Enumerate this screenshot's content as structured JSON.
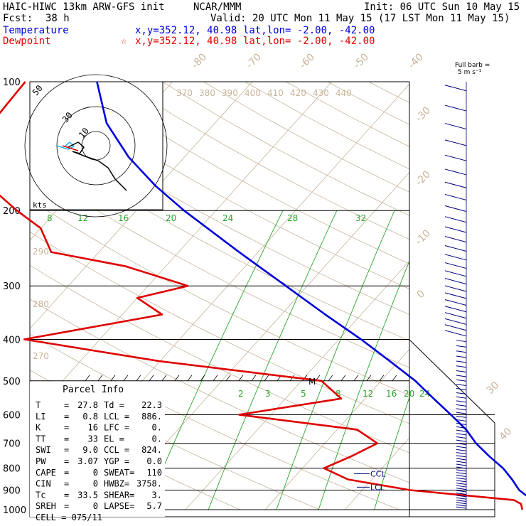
{
  "header": {
    "model": "HAIC-HIWC 13km ARW-GFS init",
    "org": "NCAR/MMM",
    "init": "Init: 06 UTC Sun 10 May 15",
    "fcst_label": "Fcst:",
    "fcst_value": "38 h",
    "valid": "Valid: 20 UTC Mon 11 May 15 (17 LST Mon 11 May 15)",
    "temp_label": "Temperature",
    "temp_xy": "x,y=352.12, 40.98",
    "temp_latlon": "lat,lon= -2.00, -42.00",
    "dew_label": "Dewpoint",
    "dew_xy": "x,y=352.12, 40.98",
    "dew_latlon": "lat,lon= -2.00, -42.00",
    "star_glyph": "☆"
  },
  "colors": {
    "temperature": "#0000dd",
    "dewpoint": "#e00000",
    "isotherm": "#c8b49a",
    "mixing_ratio": "#2aa52a",
    "isobar": "#000000",
    "wind": "#000080"
  },
  "barb_legend": {
    "line1": "Full barb =",
    "line2": "5 m s⁻¹"
  },
  "parcel": {
    "title": "Parcel Info",
    "rows": [
      {
        "k1": "T",
        "v1": "27.8",
        "k2": "Td =",
        "v2": "22.3"
      },
      {
        "k1": "LI",
        "v1": "0.8",
        "k2": "LCL =",
        "v2": "886."
      },
      {
        "k1": "K",
        "v1": "16",
        "k2": "LFC =",
        "v2": "0."
      },
      {
        "k1": "TT",
        "v1": "33",
        "k2": "EL =",
        "v2": "0."
      },
      {
        "k1": "SWI",
        "v1": "9.0",
        "k2": "CCL =",
        "v2": "824."
      },
      {
        "k1": "PW",
        "v1": "3.07",
        "k2": "YGP =",
        "v2": "0.0"
      },
      {
        "k1": "CAPE",
        "v1": "0",
        "k2": "SWEAT=",
        "v2": "110"
      },
      {
        "k1": "CIN",
        "v1": "0",
        "k2": "HWBZ=",
        "v2": "3758."
      },
      {
        "k1": "Tc",
        "v1": "33.5",
        "k2": "SHEAR=",
        "v2": "3."
      },
      {
        "k1": "SREH",
        "v1": "0",
        "k2": "LAPSE=",
        "v2": "5.7"
      }
    ],
    "cell": "CELL = 075/11"
  },
  "hodograph": {
    "ring_labels": [
      "50",
      "30",
      "10"
    ],
    "units": "kts"
  },
  "chart_data": {
    "type": "line",
    "subtype": "skew-T log-P sounding",
    "pressure_levels_hPa": [
      100,
      200,
      300,
      400,
      500,
      600,
      700,
      800,
      900,
      1000
    ],
    "pressure_tick_labels": [
      "100",
      "200",
      "300",
      "400",
      "500",
      "600",
      "700",
      "800",
      "900",
      "1000"
    ],
    "isotherm_labels": [
      "-80",
      "-70",
      "-60",
      "-50",
      "-40",
      "-30",
      "-20",
      "-10",
      "0",
      "30",
      "40"
    ],
    "theta_labels_top": [
      "370",
      "380",
      "390",
      "400",
      "410",
      "420",
      "430",
      "440"
    ],
    "theta_labels_left": [
      "290",
      "280",
      "270"
    ],
    "mixing_ratio_labels_upper": [
      "8",
      "12",
      "16",
      "20",
      "24",
      "28",
      "32"
    ],
    "mixing_ratio_labels_lower": [
      "2",
      "3",
      "5",
      "8",
      "12",
      "16",
      "20",
      "24"
    ],
    "ccl_label": "CCL",
    "lcl_label": "LCL",
    "marker_label": "M",
    "series": [
      {
        "name": "Temperature",
        "color": "#0000dd",
        "points_p_T": [
          [
            1000,
            27.8
          ],
          [
            970,
            24.5
          ],
          [
            950,
            22.8
          ],
          [
            925,
            21.1
          ],
          [
            900,
            19.7
          ],
          [
            850,
            17.6
          ],
          [
            800,
            15.2
          ],
          [
            750,
            12.1
          ],
          [
            700,
            9.0
          ],
          [
            650,
            6.2
          ],
          [
            600,
            2.6
          ],
          [
            550,
            -1.4
          ],
          [
            500,
            -5.7
          ],
          [
            450,
            -11.1
          ],
          [
            400,
            -17.2
          ],
          [
            350,
            -24.5
          ],
          [
            300,
            -32.7
          ],
          [
            250,
            -42.4
          ],
          [
            200,
            -54.0
          ],
          [
            175,
            -60.4
          ],
          [
            150,
            -67.0
          ],
          [
            125,
            -73.6
          ],
          [
            100,
            -79.5
          ]
        ]
      },
      {
        "name": "Dewpoint",
        "color": "#e00000",
        "points_p_T": [
          [
            1000,
            22.3
          ],
          [
            970,
            21.5
          ],
          [
            950,
            20.2
          ],
          [
            900,
            6.0
          ],
          [
            850,
            -3.0
          ],
          [
            800,
            -7.3
          ],
          [
            750,
            -5.2
          ],
          [
            700,
            -3.4
          ],
          [
            650,
            -7.5
          ],
          [
            600,
            -24.0
          ],
          [
            550,
            -13.0
          ],
          [
            500,
            -17.5
          ],
          [
            450,
            -40.0
          ],
          [
            400,
            -59.5
          ],
          [
            350,
            -45.0
          ],
          [
            320,
            -50.0
          ],
          [
            300,
            -45.0
          ],
          [
            270,
            -55.0
          ],
          [
            250,
            -66.0
          ],
          [
            220,
            -70.0
          ],
          [
            200,
            -75.0
          ],
          [
            180,
            -80.0
          ],
          [
            160,
            -85.0
          ],
          [
            130,
            -88.0
          ],
          [
            100,
            -88.5
          ]
        ]
      }
    ]
  }
}
